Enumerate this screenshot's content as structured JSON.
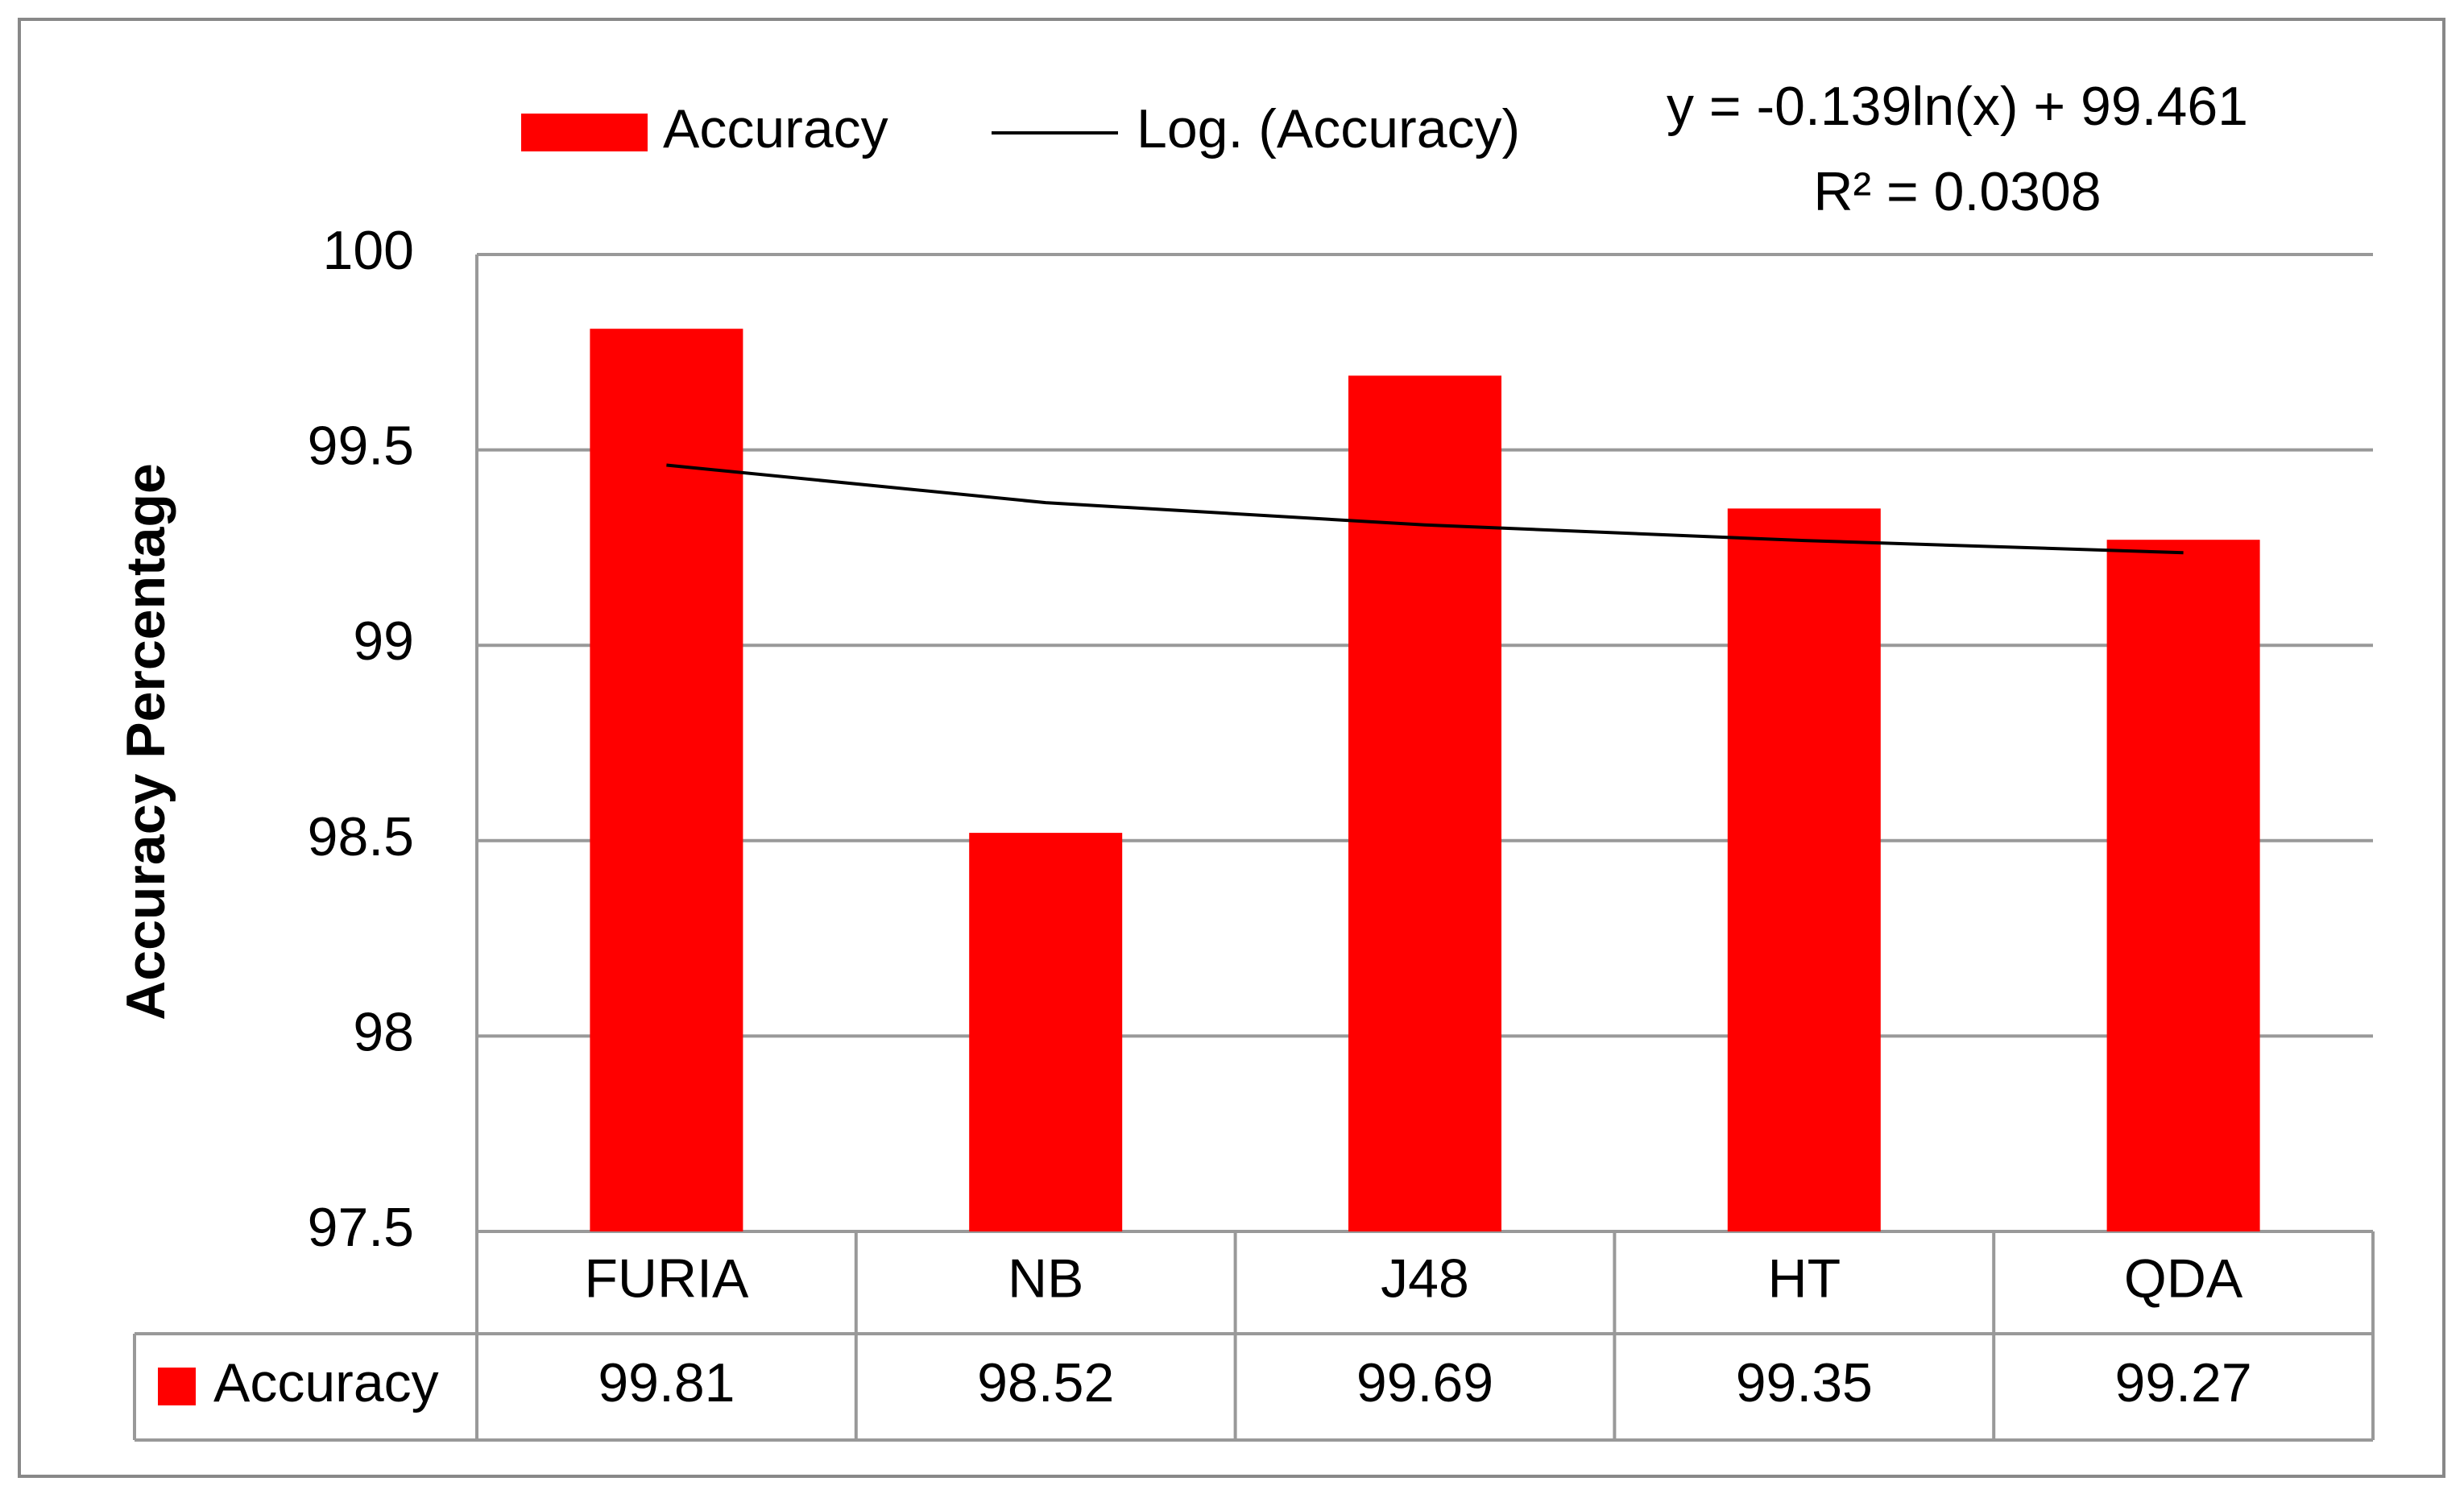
{
  "chart_data": {
    "type": "bar",
    "y_label": "Accuracy Percentage",
    "categories": [
      "FURIA",
      "NB",
      "J48",
      "HT",
      "QDA"
    ],
    "series": [
      {
        "name": "Accuracy",
        "color": "#ff0000",
        "values": [
          99.81,
          98.52,
          99.69,
          99.35,
          99.27
        ]
      }
    ],
    "trendline": {
      "name": "Log. (Accuracy)",
      "color": "#000000",
      "values": [
        99.461,
        99.365,
        99.308,
        99.268,
        99.237
      ],
      "equation": "y = -0.139ln(x) + 99.461",
      "r_squared": "R² = 0.0308"
    },
    "ylim": [
      97.5,
      100
    ],
    "yticks": [
      97.5,
      98,
      98.5,
      99,
      99.5,
      100
    ],
    "grid": true,
    "data_table": true
  }
}
